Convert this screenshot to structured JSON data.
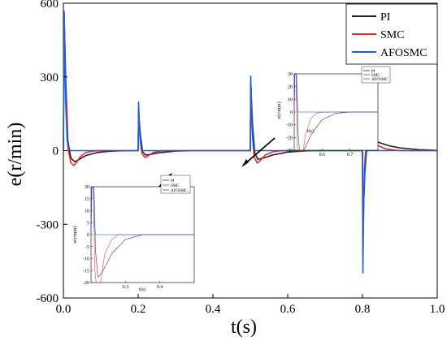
{
  "chart_data": {
    "type": "line",
    "xlabel": "t(s)",
    "ylabel": "e(r/min)",
    "xlim": [
      0,
      1.0
    ],
    "ylim": [
      -600,
      600
    ],
    "xticks": [
      "0.0",
      "0.2",
      "0.4",
      "0.6",
      "0.8",
      "1.0"
    ],
    "yticks": [
      "600",
      "300",
      "0",
      "-300",
      "-600"
    ],
    "legend_position": "top-right",
    "series": [
      {
        "name": "PI",
        "color": "#222222",
        "points": [
          [
            0,
            0
          ],
          [
            0.002,
            560
          ],
          [
            0.006,
            300
          ],
          [
            0.012,
            40
          ],
          [
            0.02,
            -30
          ],
          [
            0.03,
            -45
          ],
          [
            0.04,
            -38
          ],
          [
            0.06,
            -20
          ],
          [
            0.09,
            -8
          ],
          [
            0.12,
            -3
          ],
          [
            0.15,
            -1
          ],
          [
            0.2,
            0
          ],
          [
            0.201,
            160
          ],
          [
            0.206,
            60
          ],
          [
            0.212,
            -5
          ],
          [
            0.22,
            -18
          ],
          [
            0.235,
            -15
          ],
          [
            0.26,
            -8
          ],
          [
            0.3,
            -2
          ],
          [
            0.35,
            0
          ],
          [
            0.5,
            0
          ],
          [
            0.501,
            280
          ],
          [
            0.506,
            100
          ],
          [
            0.512,
            -10
          ],
          [
            0.52,
            -35
          ],
          [
            0.535,
            -30
          ],
          [
            0.56,
            -18
          ],
          [
            0.6,
            -6
          ],
          [
            0.65,
            -1
          ],
          [
            0.7,
            0
          ],
          [
            0.8,
            0
          ],
          [
            0.801,
            -300
          ],
          [
            0.806,
            -100
          ],
          [
            0.812,
            30
          ],
          [
            0.82,
            45
          ],
          [
            0.84,
            35
          ],
          [
            0.87,
            20
          ],
          [
            0.9,
            11
          ],
          [
            0.95,
            4
          ],
          [
            1.0,
            1
          ]
        ]
      },
      {
        "name": "SMC",
        "color": "#e03030",
        "points": [
          [
            0,
            0
          ],
          [
            0.002,
            560
          ],
          [
            0.006,
            260
          ],
          [
            0.012,
            10
          ],
          [
            0.02,
            -50
          ],
          [
            0.028,
            -60
          ],
          [
            0.035,
            -48
          ],
          [
            0.045,
            -25
          ],
          [
            0.06,
            -8
          ],
          [
            0.08,
            -2
          ],
          [
            0.1,
            0
          ],
          [
            0.2,
            0
          ],
          [
            0.201,
            170
          ],
          [
            0.205,
            50
          ],
          [
            0.21,
            -12
          ],
          [
            0.218,
            -28
          ],
          [
            0.228,
            -20
          ],
          [
            0.24,
            -8
          ],
          [
            0.26,
            -2
          ],
          [
            0.28,
            0
          ],
          [
            0.5,
            0
          ],
          [
            0.501,
            290
          ],
          [
            0.505,
            80
          ],
          [
            0.51,
            -25
          ],
          [
            0.518,
            -50
          ],
          [
            0.528,
            -38
          ],
          [
            0.54,
            -18
          ],
          [
            0.56,
            -5
          ],
          [
            0.58,
            -1
          ],
          [
            0.6,
            0
          ],
          [
            0.8,
            0
          ],
          [
            0.801,
            -400
          ],
          [
            0.805,
            -80
          ],
          [
            0.81,
            40
          ],
          [
            0.818,
            55
          ],
          [
            0.828,
            42
          ],
          [
            0.84,
            22
          ],
          [
            0.86,
            8
          ],
          [
            0.88,
            3
          ],
          [
            0.9,
            0
          ],
          [
            1.0,
            0
          ]
        ]
      },
      {
        "name": "AFOSMC",
        "color": "#2060d0",
        "points": [
          [
            0,
            0
          ],
          [
            0.002,
            570
          ],
          [
            0.006,
            200
          ],
          [
            0.01,
            40
          ],
          [
            0.015,
            5
          ],
          [
            0.02,
            0
          ],
          [
            0.2,
            0
          ],
          [
            0.201,
            200
          ],
          [
            0.204,
            70
          ],
          [
            0.208,
            10
          ],
          [
            0.212,
            0
          ],
          [
            0.5,
            0
          ],
          [
            0.501,
            305
          ],
          [
            0.504,
            110
          ],
          [
            0.508,
            15
          ],
          [
            0.513,
            0
          ],
          [
            0.8,
            0
          ],
          [
            0.801,
            -500
          ],
          [
            0.804,
            -150
          ],
          [
            0.808,
            -15
          ],
          [
            0.813,
            0
          ],
          [
            1.0,
            0
          ]
        ]
      }
    ],
    "insets": [
      {
        "xlabel": "t(s)",
        "ylabel": "e(r/min)",
        "xlim": [
          0.2,
          0.5
        ],
        "ylim": [
          -20,
          20
        ],
        "xticks": [
          "0.3",
          "0.4"
        ],
        "yticks": [
          "20",
          "15",
          "10",
          "5",
          "0",
          "-5",
          "-10",
          "-15",
          "-20"
        ],
        "legend": [
          "PI",
          "SMC",
          "AFOSMC"
        ]
      },
      {
        "xlabel": "t(s)",
        "ylabel": "e(r/min)",
        "xlim": [
          0.5,
          0.8
        ],
        "ylim": [
          -30,
          30
        ],
        "xticks": [
          "0.6",
          "0.7"
        ],
        "yticks": [
          "30",
          "20",
          "10",
          "0",
          "-10",
          "-20",
          "-30"
        ],
        "legend": [
          "PI",
          "SMC",
          "AFOSMC"
        ]
      }
    ]
  }
}
